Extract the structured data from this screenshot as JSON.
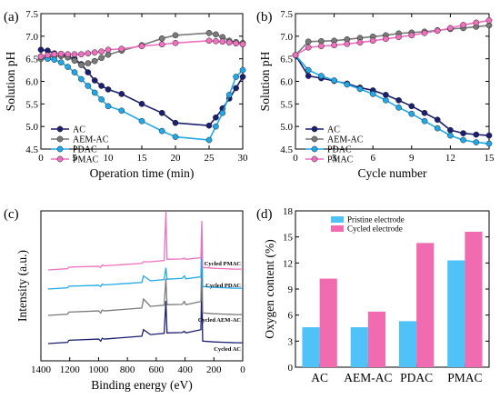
{
  "chart_data": [
    {
      "panel": "(a)",
      "type": "line",
      "xlabel": "Operation time (min)",
      "ylabel": "Solution pH",
      "xlim": [
        0,
        30
      ],
      "ylim": [
        4.5,
        7.5
      ],
      "xticks": [
        "0",
        "5",
        "10",
        "15",
        "20",
        "25",
        "30"
      ],
      "yticks": [
        "4.5",
        "5.0",
        "5.5",
        "6.0",
        "6.5",
        "7.0",
        "7.5"
      ],
      "legend": "bottom-left",
      "grid": false,
      "x": [
        0,
        1,
        2,
        3,
        4,
        5,
        6,
        7,
        8,
        9,
        10,
        12,
        15,
        18,
        20,
        25,
        26,
        27,
        28,
        29,
        30
      ],
      "series": [
        {
          "name": "AC",
          "color": "#1a1f70",
          "values": [
            6.7,
            6.68,
            6.62,
            6.6,
            6.55,
            6.5,
            6.38,
            6.2,
            6.02,
            5.9,
            5.82,
            5.72,
            5.5,
            5.3,
            5.08,
            5.02,
            5.2,
            5.4,
            5.62,
            5.85,
            6.1
          ]
        },
        {
          "name": "AEM-AC",
          "color": "#7a7a7a",
          "values": [
            6.5,
            6.53,
            6.56,
            6.56,
            6.53,
            6.46,
            6.36,
            6.4,
            6.45,
            6.52,
            6.59,
            6.68,
            6.8,
            6.95,
            7.02,
            7.07,
            7.04,
            6.98,
            6.9,
            6.87,
            6.85
          ]
        },
        {
          "name": "PDAC",
          "color": "#20a8e8",
          "values": [
            6.55,
            6.5,
            6.48,
            6.42,
            6.32,
            6.2,
            6.05,
            5.9,
            5.75,
            5.6,
            5.45,
            5.35,
            5.12,
            4.9,
            4.77,
            4.7,
            5.0,
            5.3,
            5.7,
            6.1,
            6.25
          ]
        },
        {
          "name": "PMAC",
          "color": "#f070c0",
          "values": [
            6.55,
            6.58,
            6.6,
            6.61,
            6.6,
            6.6,
            6.6,
            6.62,
            6.64,
            6.66,
            6.7,
            6.72,
            6.78,
            6.82,
            6.85,
            6.9,
            6.89,
            6.88,
            6.86,
            6.84,
            6.82
          ]
        }
      ]
    },
    {
      "panel": "(b)",
      "type": "line",
      "xlabel": "Cycle number",
      "ylabel": "Solution pH",
      "xlim": [
        0,
        15
      ],
      "ylim": [
        4.5,
        7.5
      ],
      "xticks": [
        "0",
        "3",
        "6",
        "9",
        "12",
        "15"
      ],
      "yticks": [
        "4.5",
        "5.0",
        "5.5",
        "6.0",
        "6.5",
        "7.0",
        "7.5"
      ],
      "legend": "bottom-left",
      "grid": false,
      "x": [
        0,
        1,
        2,
        3,
        4,
        5,
        6,
        7,
        8,
        9,
        10,
        11,
        12,
        13,
        14,
        15
      ],
      "series": [
        {
          "name": "AC",
          "color": "#1a1f70",
          "values": [
            6.58,
            6.12,
            6.07,
            6.01,
            5.95,
            5.86,
            5.8,
            5.7,
            5.58,
            5.45,
            5.3,
            5.15,
            4.92,
            4.85,
            4.82,
            4.8
          ]
        },
        {
          "name": "AEM-AC",
          "color": "#7a7a7a",
          "values": [
            6.58,
            6.88,
            6.89,
            6.9,
            6.93,
            6.96,
            6.99,
            7.02,
            7.06,
            7.08,
            7.1,
            7.13,
            7.16,
            7.18,
            7.21,
            7.24
          ]
        },
        {
          "name": "PDAC",
          "color": "#20a8e8",
          "values": [
            6.58,
            6.25,
            6.12,
            6.02,
            5.93,
            5.83,
            5.72,
            5.58,
            5.42,
            5.28,
            5.12,
            4.96,
            4.8,
            4.7,
            4.65,
            4.62
          ]
        },
        {
          "name": "PMAC",
          "color": "#f070c0",
          "values": [
            6.58,
            6.75,
            6.78,
            6.8,
            6.83,
            6.86,
            6.9,
            6.94,
            6.98,
            7.02,
            7.07,
            7.12,
            7.18,
            7.25,
            7.3,
            7.35
          ]
        }
      ]
    },
    {
      "panel": "(c)",
      "type": "line",
      "xlabel": "Binding energy (eV)",
      "ylabel": "Intensity (a.u.)",
      "xlim": [
        1400,
        0
      ],
      "xticks": [
        "1400",
        "1200",
        "1000",
        "800",
        "600",
        "400",
        "200",
        "0"
      ],
      "grid": false,
      "x": [
        1350,
        1215,
        1205,
        1000,
        985,
        975,
        960,
        700,
        688,
        640,
        545,
        533,
        525,
        420,
        405,
        395,
        290,
        284,
        278,
        200,
        130,
        50,
        0
      ],
      "series": [
        {
          "name": "Cycled AC",
          "color": "#1a1f70",
          "values": [
            0,
            0.15,
            0.4,
            0.55,
            0.3,
            0.65,
            0.55,
            0.9,
            1.7,
            1.1,
            1.25,
            5.2,
            1.3,
            1.35,
            1.5,
            1.3,
            1.7,
            8.0,
            0.3,
            0.2,
            0.15,
            0.1,
            0.1
          ]
        },
        {
          "name": "Cycled AEM-AC",
          "color": "#7a7a7a",
          "values": [
            0,
            0.15,
            0.4,
            0.55,
            0.3,
            0.65,
            0.55,
            0.9,
            2.0,
            1.1,
            1.25,
            4.5,
            1.3,
            1.35,
            1.7,
            1.3,
            1.7,
            8.0,
            0.3,
            0.2,
            0.15,
            0.1,
            0.1
          ]
        },
        {
          "name": "Cycled PDAC",
          "color": "#20a8e8",
          "values": [
            0,
            0.15,
            0.35,
            0.45,
            0.3,
            0.6,
            0.5,
            0.8,
            1.6,
            1.0,
            1.15,
            2.6,
            1.2,
            1.3,
            1.6,
            1.25,
            1.5,
            6.8,
            0.3,
            0.2,
            0.15,
            0.1,
            0.1
          ]
        },
        {
          "name": "Cycled PMAC",
          "color": "#f070c0",
          "values": [
            0,
            0.15,
            0.35,
            0.45,
            0.3,
            0.6,
            0.5,
            0.8,
            1.0,
            1.0,
            1.15,
            10.0,
            1.3,
            1.35,
            1.45,
            1.3,
            1.5,
            6.0,
            0.3,
            0.2,
            0.15,
            0.1,
            0.1
          ]
        }
      ]
    },
    {
      "panel": "(d)",
      "type": "bar",
      "ylabel": "Oxygen content (%)",
      "ylim": [
        0,
        18
      ],
      "yticks": [
        "0",
        "3",
        "6",
        "9",
        "12",
        "15",
        "18"
      ],
      "categories": [
        "AC",
        "AEM-AC",
        "PDAC",
        "PMAC"
      ],
      "legend": "top-left",
      "grid": false,
      "series": [
        {
          "name": "Pristine electrode",
          "color": "#4fc3f7",
          "values": [
            4.6,
            4.6,
            5.3,
            12.3
          ]
        },
        {
          "name": "Cycled electrode",
          "color": "#f06bb0",
          "values": [
            10.2,
            6.4,
            14.3,
            15.6
          ]
        }
      ]
    }
  ]
}
